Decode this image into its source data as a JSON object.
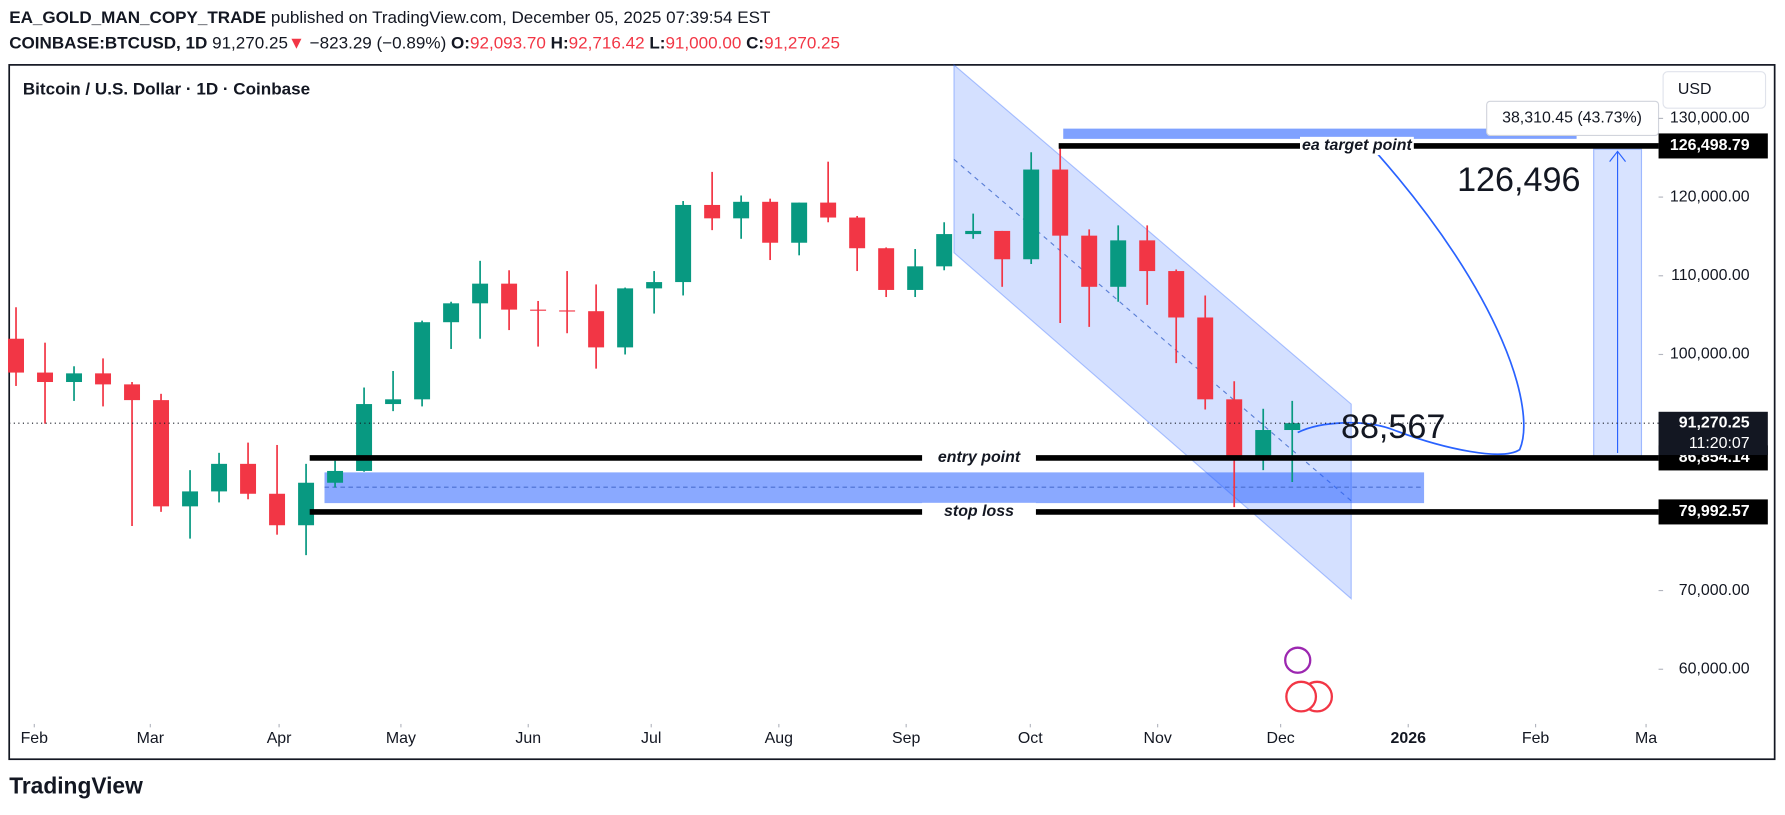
{
  "header": {
    "author": "EA_GOLD_MAN_COPY_TRADE",
    "published": "published on TradingView.com, December 05, 2025 07:39:54 EST",
    "symbol": "COINBASE:BTCUSD, 1D",
    "last": "91,270.25",
    "arrow": "▼",
    "change": "−823.29 (−0.89%)",
    "ohlc": [
      {
        "label": "O:",
        "value": "92,093.70"
      },
      {
        "label": "H:",
        "value": "92,716.42"
      },
      {
        "label": "L:",
        "value": "91,000.00"
      },
      {
        "label": "C:",
        "value": "91,270.25"
      }
    ]
  },
  "footer": {
    "brand": "TradingView"
  },
  "chart_data": {
    "type": "candlestick",
    "title": "Bitcoin / U.S. Dollar · 1D · Coinbase",
    "currency": "USD",
    "up_color": "#089981",
    "down_color": "#f23645",
    "open": [
      102000,
      97700,
      96500,
      97600,
      96200,
      94200,
      80700,
      82600,
      86100,
      82300,
      78300,
      83700,
      85200,
      93700,
      94300,
      104100,
      106500,
      109000,
      105700,
      105600,
      105500,
      100900,
      108400,
      109200,
      119000,
      117300,
      119400,
      114200,
      119300,
      117400,
      113500,
      108200,
      111200,
      115300,
      115700,
      112100,
      123500,
      115100,
      108600,
      114500,
      110600,
      104700,
      94300,
      86800,
      90400
    ],
    "high": [
      106000,
      101500,
      98500,
      99500,
      96500,
      95000,
      85300,
      87500,
      88800,
      88500,
      86100,
      86500,
      95800,
      97900,
      104300,
      106700,
      111900,
      110700,
      106800,
      110600,
      108900,
      108500,
      110600,
      119500,
      123200,
      120200,
      119800,
      119300,
      124500,
      117600,
      113600,
      113400,
      116800,
      117900,
      115700,
      125700,
      126200,
      115900,
      116400,
      116400,
      110800,
      107500,
      96600,
      93100,
      94100
    ],
    "low": [
      96000,
      91200,
      94100,
      93400,
      78200,
      80000,
      76600,
      81200,
      81600,
      77100,
      74500,
      83100,
      85100,
      92800,
      93400,
      100700,
      102000,
      103100,
      101000,
      102700,
      98200,
      100000,
      105200,
      107500,
      115800,
      114700,
      112000,
      112600,
      116800,
      110600,
      107300,
      107300,
      110700,
      114700,
      108600,
      111500,
      104000,
      103500,
      106700,
      106300,
      98900,
      93000,
      80600,
      85300,
      83800
    ],
    "close": [
      97700,
      96500,
      97600,
      96200,
      94200,
      80700,
      82600,
      86100,
      82300,
      78300,
      83700,
      85200,
      93700,
      94300,
      104100,
      106500,
      109000,
      105700,
      105600,
      105500,
      100900,
      108400,
      109200,
      119000,
      117300,
      119400,
      114200,
      119300,
      117400,
      113500,
      108200,
      111200,
      115300,
      115700,
      112100,
      123500,
      115100,
      108600,
      114500,
      110600,
      104700,
      94300,
      86800,
      90400,
      91270.25
    ],
    "xlim": [
      -0.235,
      56.63
    ],
    "xticks": [
      {
        "value": 0.63,
        "label": "Feb"
      },
      {
        "value": 4.63,
        "label": "Mar"
      },
      {
        "value": 9.07,
        "label": "Apr"
      },
      {
        "value": 13.27,
        "label": "May"
      },
      {
        "value": 17.66,
        "label": "Jun"
      },
      {
        "value": 21.9,
        "label": "Jul"
      },
      {
        "value": 26.3,
        "label": "Aug"
      },
      {
        "value": 30.69,
        "label": "Sep"
      },
      {
        "value": 34.97,
        "label": "Oct"
      },
      {
        "value": 39.36,
        "label": "Nov"
      },
      {
        "value": 43.6,
        "label": "Dec"
      },
      {
        "value": 48.0,
        "label": "2026"
      },
      {
        "value": 52.39,
        "label": "Feb"
      },
      {
        "value": 56.2,
        "label": "Ma"
      }
    ],
    "ylim": [
      53050,
      136800
    ],
    "yticks": [
      {
        "value": 60000,
        "label": "60,000.00"
      },
      {
        "value": 70000,
        "label": "70,000.00"
      },
      {
        "value": 100000,
        "label": "100,000.00"
      },
      {
        "value": 110000,
        "label": "110,000.00"
      },
      {
        "value": 120000,
        "label": "120,000.00"
      },
      {
        "value": 130000,
        "label": "130,000.00"
      }
    ],
    "levels": [
      {
        "name": "ea target point",
        "value": 126498.79,
        "label": "126,498.79"
      },
      {
        "name": "entry point",
        "value": 86854.14,
        "label": "86,854.14"
      },
      {
        "name": "stop loss",
        "value": 79992.57,
        "label": "79,992.57"
      }
    ],
    "last_price": {
      "value": 91270.25,
      "label": "91,270.25",
      "countdown": "11:20:07"
    },
    "annotations": {
      "target": "126,496",
      "current": "88,567",
      "measure": "38,310.45 (43.73%)"
    }
  }
}
